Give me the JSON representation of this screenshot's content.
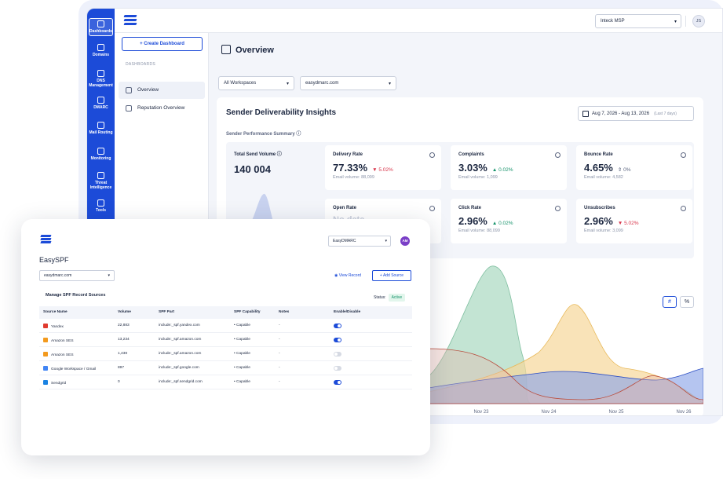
{
  "rail": [
    {
      "label": "Dashboards",
      "icon": "dashboard-icon",
      "active": true
    },
    {
      "label": "Domains",
      "icon": "globe-icon"
    },
    {
      "label": "DNS Management",
      "icon": "dns-icon"
    },
    {
      "label": "DMARC",
      "icon": "dmarc-icon"
    },
    {
      "label": "Mail Routing",
      "icon": "mail-routing-icon"
    },
    {
      "label": "Monitoring",
      "icon": "monitoring-icon"
    },
    {
      "label": "Threat Intelligence",
      "icon": "threat-icon"
    },
    {
      "label": "Tools",
      "icon": "tools-icon"
    }
  ],
  "topbar": {
    "org": "Inteck MSP",
    "avatar": "JS"
  },
  "sidepanel": {
    "create_label": "+ Create Dashboard",
    "caption": "DASHBOARDS",
    "items": [
      {
        "label": "Overview"
      },
      {
        "label": "Reputation Overview"
      }
    ]
  },
  "main": {
    "title": "Overview",
    "workspace": "All Workspaces",
    "domain": "easydmarc.com",
    "insights_title": "Sender Deliverability Insights",
    "date_range": "Aug 7, 2026 - Aug 13, 2026",
    "date_hint": "(Last 7 days)",
    "perf_summary": "Sender Performance Summary",
    "total_label": "Total Send Volume",
    "total_value": "140 004",
    "metrics": [
      {
        "label": "Delivery Rate",
        "value": "77.33%",
        "delta": "▼ 5.02%",
        "trend": "down",
        "sub": "Email volume: 88,099"
      },
      {
        "label": "Complaints",
        "value": "3.03%",
        "delta": "▲ 0.02%",
        "trend": "up",
        "sub": "Email volume: 1,099"
      },
      {
        "label": "Bounce Rate",
        "value": "4.65%",
        "delta": "⇕ 0%",
        "trend": "flat",
        "sub": "Email volume: 4,582"
      },
      {
        "label": "Open Rate",
        "value": "No data",
        "delta": "",
        "trend": "none",
        "sub": ""
      },
      {
        "label": "Click Rate",
        "value": "2.96%",
        "delta": "▲ 0.02%",
        "trend": "up",
        "sub": "Email volume: 88,099"
      },
      {
        "label": "Unsubscribes",
        "value": "2.96%",
        "delta": "▼ 5.02%",
        "trend": "down",
        "sub": "Email volume: 3,099"
      }
    ],
    "toggle_hash": "#",
    "toggle_pct": "%",
    "x_labels": [
      "Nov 23",
      "Nov 24",
      "Nov 25",
      "Nov 26"
    ]
  },
  "front": {
    "org": "EasyDMARC",
    "avatar": "AM",
    "title": "EasySPF",
    "domain": "easydmarc.com",
    "view_record": "View Record",
    "add_source": "+ Add Source",
    "manage_title": "Manage SPF Record Sources",
    "status_label": "Status:",
    "status_value": "Active",
    "columns": [
      "Source Name",
      "Volume",
      "SPF Part",
      "SPF Capability",
      "Notes",
      "Enable/Disable"
    ],
    "rows": [
      {
        "name": "Yandex",
        "volume": "22,883",
        "spf": "include:_spf.yandex.com",
        "cap": "Capable",
        "notes": "-",
        "enabled": true,
        "color": "#e03a2f"
      },
      {
        "name": "Amazon SES",
        "volume": "13,234",
        "spf": "include:_spf.amazon.com",
        "cap": "Capable",
        "notes": "-",
        "enabled": true,
        "color": "#f39a1e"
      },
      {
        "name": "Amazon SES",
        "volume": "1,438",
        "spf": "include:_spf.amazon.com",
        "cap": "Capable",
        "notes": "-",
        "enabled": false,
        "color": "#f39a1e"
      },
      {
        "name": "Google Workspace / Gmail",
        "volume": "897",
        "spf": "include:_spf.google.com",
        "cap": "Capable",
        "notes": "-",
        "enabled": false,
        "color": "#4285f4"
      },
      {
        "name": "Sendgrid",
        "volume": "0",
        "spf": "include:_spf.sendgrid.com",
        "cap": "Capable",
        "notes": "-",
        "enabled": true,
        "color": "#1a82e2"
      }
    ]
  },
  "colors": {
    "brand": "#1c4bd8",
    "red": "#d8344a",
    "green": "#16936b"
  }
}
